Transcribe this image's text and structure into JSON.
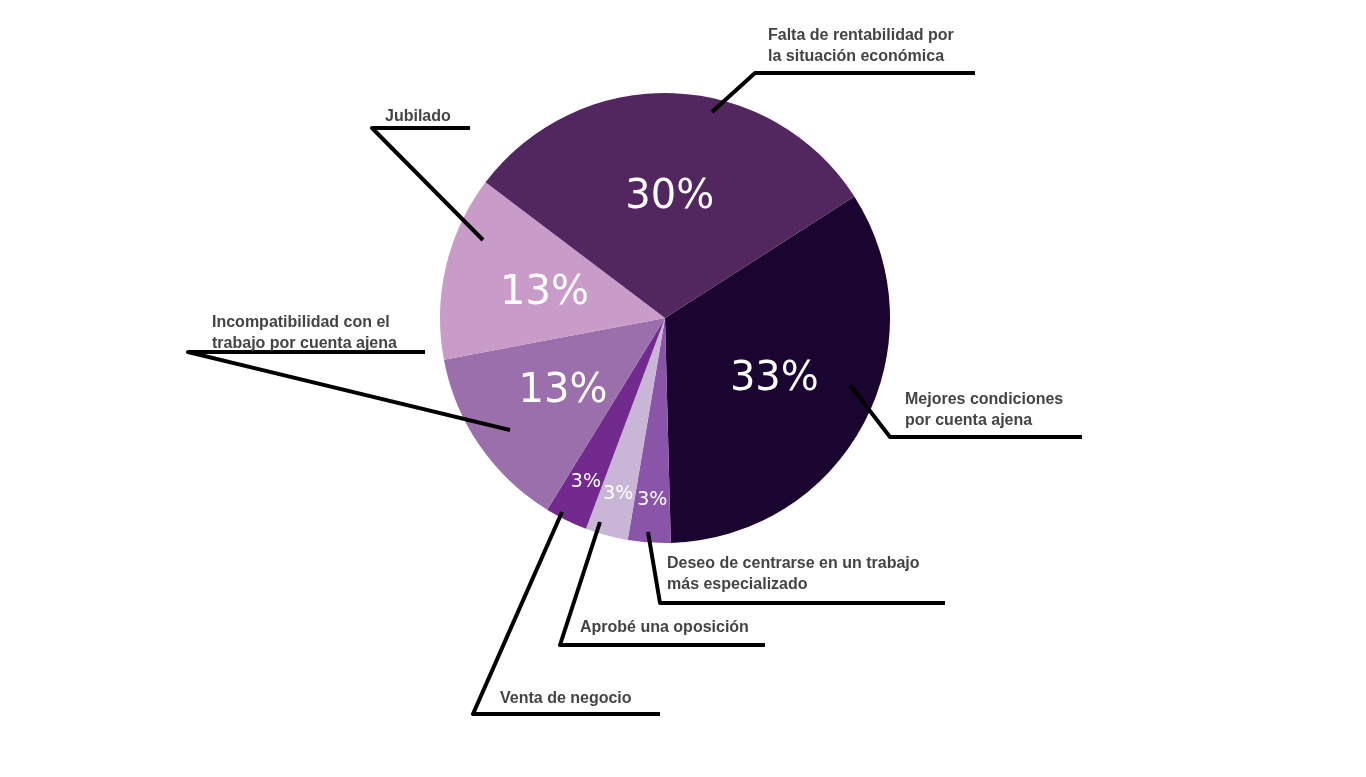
{
  "chart_data": {
    "type": "pie",
    "categories": [
      "Mejores condiciones por cuenta ajena",
      "Deseo de centrarse en un trabajo más especializado",
      "Aprobé una oposición",
      "Venta de negocio",
      "Incompatibilidad con el trabajo por cuenta ajena",
      "Jubilado",
      "Falta de rentabilidad por la situación económica"
    ],
    "values": [
      33,
      3,
      3,
      3,
      13,
      13,
      30
    ],
    "colors": [
      "#190530",
      "#8a55a8",
      "#c9b6d6",
      "#722a8e",
      "#9b6fab",
      "#c89bc8",
      "#52265f"
    ],
    "value_labels": [
      "33%",
      "3%",
      "3%",
      "3%",
      "13%",
      "13%",
      "30%"
    ]
  }
}
